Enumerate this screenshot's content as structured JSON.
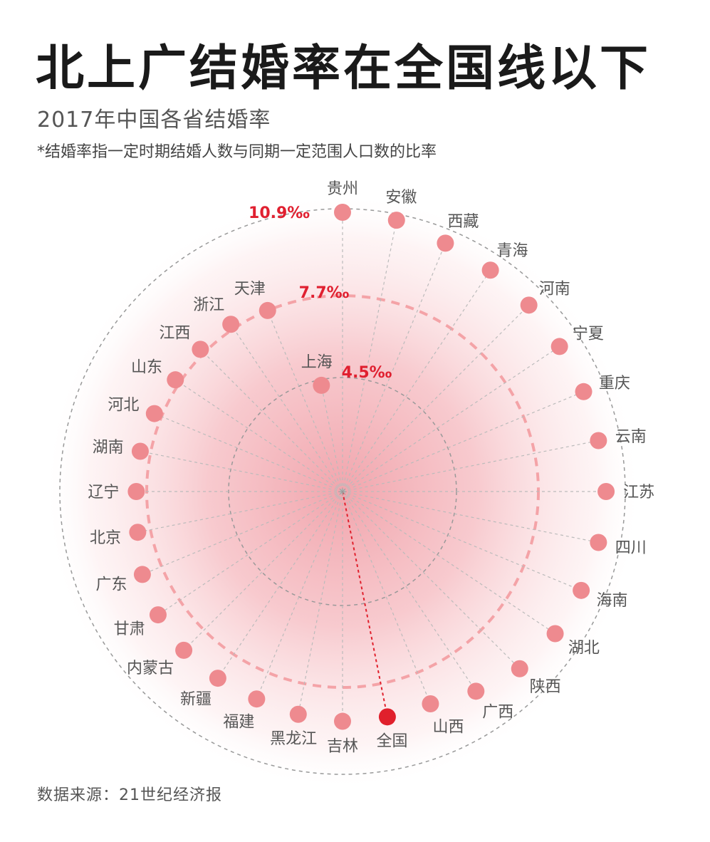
{
  "title": "北上广结婚率在全国线以下",
  "subtitle": "2017年中国各省结婚率",
  "note": "*结婚率指一定时期结婚人数与同期一定范围人口数的比率",
  "source": "数据来源：21世纪经济报",
  "colors": {
    "dot": "#ee8a8f",
    "national_dot": "#e0202c",
    "ring_label": "#e02030",
    "spoke": "#bbbbbb",
    "ring_outer": "#999999",
    "ring_middle": "#f4a3a7"
  },
  "chart_data": {
    "type": "radial-dot",
    "unit": "‰",
    "ring_labels": [
      {
        "value": 10.9,
        "text": "10.9‰"
      },
      {
        "value": 7.7,
        "text": "7.7‰"
      },
      {
        "value": 4.5,
        "text": "4.5‰"
      }
    ],
    "highlight": "全国",
    "points": [
      {
        "name": "贵州",
        "value": 10.9
      },
      {
        "name": "安徽",
        "value": 10.8
      },
      {
        "name": "西藏",
        "value": 10.5
      },
      {
        "name": "青海",
        "value": 10.4
      },
      {
        "name": "河南",
        "value": 10.3
      },
      {
        "name": "宁夏",
        "value": 10.2
      },
      {
        "name": "重庆",
        "value": 10.2
      },
      {
        "name": "云南",
        "value": 10.2
      },
      {
        "name": "江苏",
        "value": 10.3
      },
      {
        "name": "四川",
        "value": 10.2
      },
      {
        "name": "海南",
        "value": 10.1
      },
      {
        "name": "湖北",
        "value": 10.0
      },
      {
        "name": "陕西",
        "value": 9.8
      },
      {
        "name": "广西",
        "value": 9.4
      },
      {
        "name": "山西",
        "value": 9.0
      },
      {
        "name": "全国",
        "value": 9.0
      },
      {
        "name": "吉林",
        "value": 9.0
      },
      {
        "name": "黑龙江",
        "value": 8.9
      },
      {
        "name": "福建",
        "value": 8.8
      },
      {
        "name": "新疆",
        "value": 8.8
      },
      {
        "name": "内蒙古",
        "value": 8.8
      },
      {
        "name": "甘肃",
        "value": 8.7
      },
      {
        "name": "广东",
        "value": 8.5
      },
      {
        "name": "北京",
        "value": 8.2
      },
      {
        "name": "辽宁",
        "value": 8.1
      },
      {
        "name": "湖南",
        "value": 8.1
      },
      {
        "name": "河北",
        "value": 8.0
      },
      {
        "name": "山东",
        "value": 7.9
      },
      {
        "name": "江西",
        "value": 7.9
      },
      {
        "name": "浙江",
        "value": 7.9
      },
      {
        "name": "天津",
        "value": 7.7
      },
      {
        "name": "上海",
        "value": 4.5
      }
    ]
  }
}
